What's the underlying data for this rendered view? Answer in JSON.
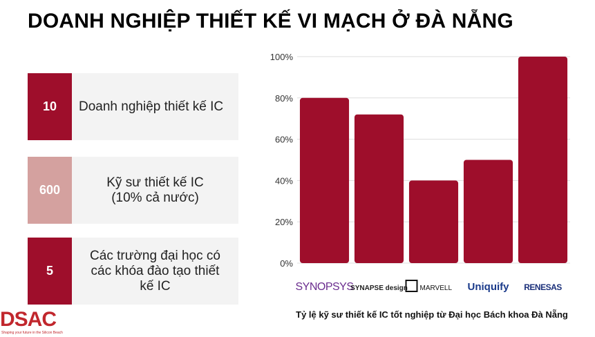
{
  "title": "DOANH NGHIỆP THIẾT KẾ VI MẠCH Ở ĐÀ NẴNG",
  "stats": [
    {
      "number": "10",
      "text": "Doanh nghiệp thiết kế IC",
      "color": "#9e0e2b"
    },
    {
      "number": "600",
      "text": "Kỹ sư thiết kế IC\n(10% cả nước)",
      "color": "#d4a19f"
    },
    {
      "number": "5",
      "text": "Các trường đại học có\ncác khóa đào tạo thiết\nkế IC",
      "color": "#9e0e2b"
    }
  ],
  "logo": {
    "text": "DSAC",
    "tagline": "Shaping your future in the Silicon Beach"
  },
  "chart_data": {
    "type": "bar",
    "categories": [
      "SYNOPSYS",
      "SYNAPSE design",
      "MARVELL",
      "Uniquify",
      "RENESAS"
    ],
    "values": [
      80,
      72,
      40,
      50,
      100
    ],
    "ylim": [
      0,
      100
    ],
    "yticks": [
      "0%",
      "20%",
      "40%",
      "60%",
      "80%",
      "100%"
    ],
    "bar_color": "#9e0e2b",
    "grid": true,
    "title": "Tỷ lệ kỹ sư thiết kế IC tốt nghiệp từ Đại học Bách khoa Đà Nẵng"
  }
}
